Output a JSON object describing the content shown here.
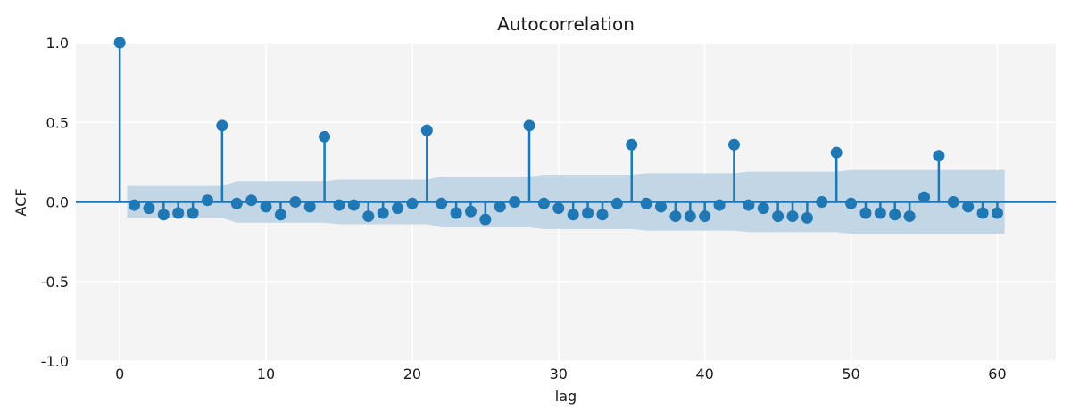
{
  "chart_data": {
    "type": "stem",
    "title": "Autocorrelation",
    "xlabel": "lag",
    "ylabel": "ACF",
    "xlim": [
      -3,
      64
    ],
    "ylim": [
      -1.0,
      1.0
    ],
    "xticks": [
      0,
      10,
      20,
      30,
      40,
      50,
      60
    ],
    "xtick_labels": [
      "0",
      "10",
      "20",
      "30",
      "40",
      "50",
      "60"
    ],
    "yticks": [
      -1.0,
      -0.5,
      0.0,
      0.5,
      1.0
    ],
    "ytick_labels": [
      "-1.0",
      "-0.5",
      "0.0",
      "0.5",
      "1.0"
    ],
    "grid": true,
    "colors": {
      "stem": "#1f77b4",
      "band": "#b9d0e3",
      "plot_bg": "#f4f4f4",
      "grid": "#ffffff"
    },
    "series": [
      {
        "x": [
          0,
          1,
          2,
          3,
          4,
          5,
          6,
          7,
          8,
          9,
          10,
          11,
          12,
          13,
          14,
          15,
          16,
          17,
          18,
          19,
          20,
          21,
          22,
          23,
          24,
          25,
          26,
          27,
          28,
          29,
          30,
          31,
          32,
          33,
          34,
          35,
          36,
          37,
          38,
          39,
          40,
          41,
          42,
          43,
          44,
          45,
          46,
          47,
          48,
          49,
          50,
          51,
          52,
          53,
          54,
          55,
          56,
          57,
          58,
          59,
          60
        ],
        "values": [
          1.0,
          -0.02,
          -0.04,
          -0.08,
          -0.07,
          -0.07,
          0.01,
          0.48,
          -0.01,
          0.01,
          -0.03,
          -0.08,
          0.0,
          -0.03,
          0.41,
          -0.02,
          -0.02,
          -0.09,
          -0.07,
          -0.04,
          -0.01,
          0.45,
          -0.01,
          -0.07,
          -0.06,
          -0.11,
          -0.03,
          0.0,
          0.48,
          -0.01,
          -0.04,
          -0.08,
          -0.07,
          -0.08,
          -0.01,
          0.36,
          -0.01,
          -0.03,
          -0.09,
          -0.09,
          -0.09,
          -0.02,
          0.36,
          -0.02,
          -0.04,
          -0.09,
          -0.09,
          -0.1,
          0.0,
          0.31,
          -0.01,
          -0.07,
          -0.07,
          -0.08,
          -0.09,
          0.03,
          0.29,
          0.0,
          -0.03,
          -0.07,
          -0.07
        ]
      }
    ],
    "confidence_band": {
      "x": [
        0.5,
        1,
        2,
        3,
        4,
        5,
        6,
        7,
        8,
        9,
        10,
        11,
        12,
        13,
        14,
        15,
        16,
        17,
        18,
        19,
        20,
        21,
        22,
        23,
        24,
        25,
        26,
        27,
        28,
        29,
        30,
        31,
        32,
        33,
        34,
        35,
        36,
        37,
        38,
        39,
        40,
        41,
        42,
        43,
        44,
        45,
        46,
        47,
        48,
        49,
        50,
        51,
        52,
        53,
        54,
        55,
        56,
        57,
        58,
        59,
        60.5
      ],
      "upper": [
        0.1,
        0.1,
        0.1,
        0.1,
        0.1,
        0.1,
        0.1,
        0.1,
        0.13,
        0.13,
        0.13,
        0.13,
        0.13,
        0.13,
        0.13,
        0.14,
        0.14,
        0.14,
        0.14,
        0.14,
        0.14,
        0.14,
        0.16,
        0.16,
        0.16,
        0.16,
        0.16,
        0.16,
        0.16,
        0.17,
        0.17,
        0.17,
        0.17,
        0.17,
        0.17,
        0.17,
        0.18,
        0.18,
        0.18,
        0.18,
        0.18,
        0.18,
        0.18,
        0.19,
        0.19,
        0.19,
        0.19,
        0.19,
        0.19,
        0.19,
        0.2,
        0.2,
        0.2,
        0.2,
        0.2,
        0.2,
        0.2,
        0.2,
        0.2,
        0.2,
        0.2
      ],
      "lower": [
        -0.1,
        -0.1,
        -0.1,
        -0.1,
        -0.1,
        -0.1,
        -0.1,
        -0.1,
        -0.13,
        -0.13,
        -0.13,
        -0.13,
        -0.13,
        -0.13,
        -0.13,
        -0.14,
        -0.14,
        -0.14,
        -0.14,
        -0.14,
        -0.14,
        -0.14,
        -0.16,
        -0.16,
        -0.16,
        -0.16,
        -0.16,
        -0.16,
        -0.16,
        -0.17,
        -0.17,
        -0.17,
        -0.17,
        -0.17,
        -0.17,
        -0.17,
        -0.18,
        -0.18,
        -0.18,
        -0.18,
        -0.18,
        -0.18,
        -0.18,
        -0.19,
        -0.19,
        -0.19,
        -0.19,
        -0.19,
        -0.19,
        -0.19,
        -0.2,
        -0.2,
        -0.2,
        -0.2,
        -0.2,
        -0.2,
        -0.2,
        -0.2,
        -0.2,
        -0.2,
        -0.2
      ]
    }
  }
}
